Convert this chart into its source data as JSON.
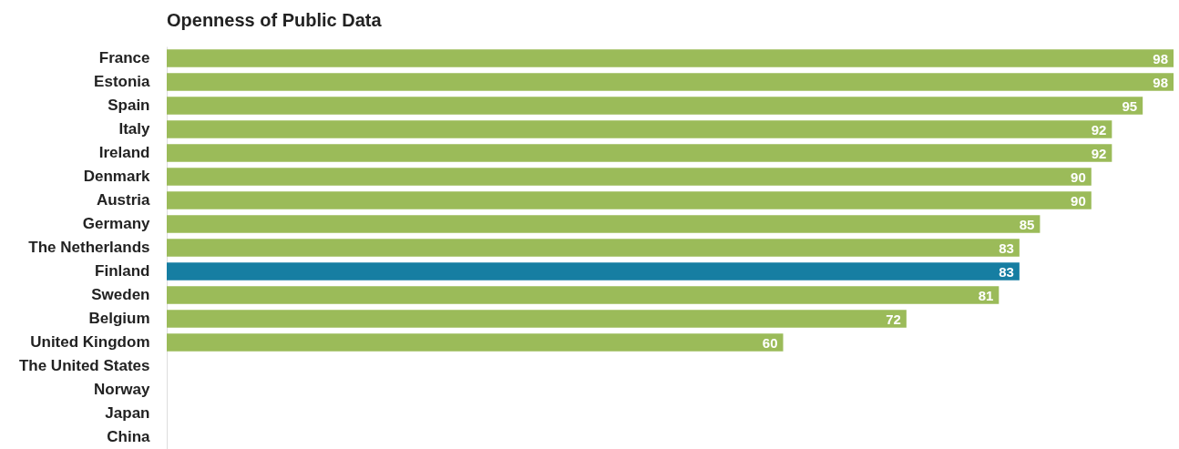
{
  "chart_data": {
    "type": "bar",
    "orientation": "horizontal",
    "title": "Openness of Public Data",
    "categories": [
      "France",
      "Estonia",
      "Spain",
      "Italy",
      "Ireland",
      "Denmark",
      "Austria",
      "Germany",
      "The Netherlands",
      "Finland",
      "Sweden",
      "Belgium",
      "United Kingdom",
      "The United States",
      "Norway",
      "Japan",
      "China"
    ],
    "values": [
      98,
      98,
      95,
      92,
      92,
      90,
      90,
      85,
      83,
      83,
      81,
      72,
      60,
      null,
      null,
      null,
      null
    ],
    "colors": [
      "#9bbb59",
      "#9bbb59",
      "#9bbb59",
      "#9bbb59",
      "#9bbb59",
      "#9bbb59",
      "#9bbb59",
      "#9bbb59",
      "#9bbb59",
      "#167ea2",
      "#9bbb59",
      "#9bbb59",
      "#9bbb59",
      "#9bbb59",
      "#9bbb59",
      "#9bbb59",
      "#9bbb59"
    ],
    "data_labels": true,
    "grid": false
  }
}
